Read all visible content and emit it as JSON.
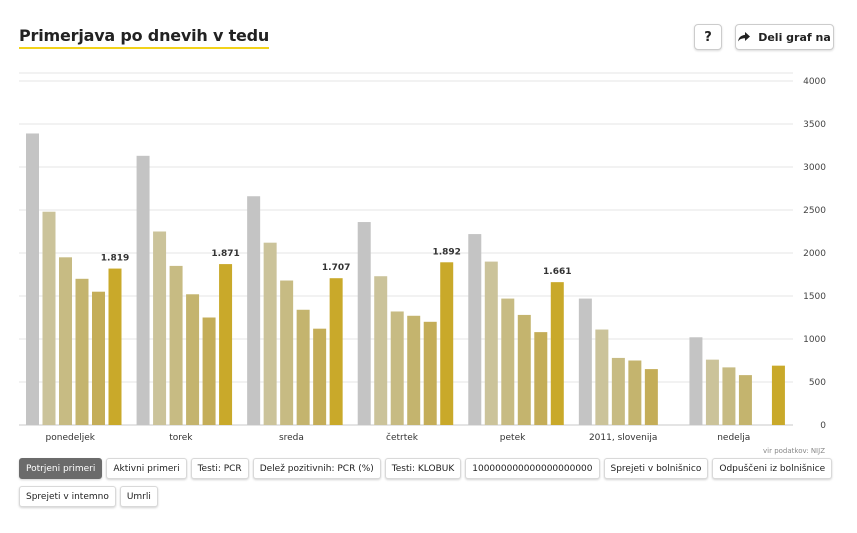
{
  "header": {
    "title": "Primerjava po dnevih v tedu",
    "help_label": "?",
    "share_label": "Deli graf na"
  },
  "source": "vir podatkov: NIJZ",
  "buttons_row1": [
    {
      "label": "Potrjeni primeri",
      "active": true
    },
    {
      "label": "Aktivni primeri",
      "active": false
    },
    {
      "label": "Testi: PCR",
      "active": false
    },
    {
      "label": "Delež pozitivnih: PCR (%)",
      "active": false
    },
    {
      "label": "Testi: KLOBUK",
      "active": false
    },
    {
      "label": "100000000000000000000",
      "active": false
    },
    {
      "label": "Sprejeti v bolnišnico",
      "active": false
    },
    {
      "label": "Odpuščeni iz bolnišnice",
      "active": false
    }
  ],
  "buttons_row2": [
    {
      "label": "Sprejeti v intemno",
      "active": false
    },
    {
      "label": "Umrli",
      "active": false
    }
  ],
  "chart_data": {
    "type": "bar",
    "categories": [
      "ponedeljek",
      "torek",
      "sreda",
      "četrtek",
      "petek",
      "2011, slovenija",
      "nedelja"
    ],
    "series": [
      {
        "color": "#c4c4c4",
        "values": [
          3390,
          3130,
          2660,
          2360,
          2220,
          1470,
          1020
        ]
      },
      {
        "color": "#cbc39a",
        "values": [
          2480,
          2250,
          2120,
          1730,
          1900,
          1110,
          760
        ]
      },
      {
        "color": "#c7bb83",
        "values": [
          1950,
          1850,
          1680,
          1320,
          1470,
          780,
          670
        ]
      },
      {
        "color": "#c4b46e",
        "values": [
          1700,
          1520,
          1340,
          1270,
          1280,
          750,
          580
        ]
      },
      {
        "color": "#c4ad58",
        "values": [
          1550,
          1250,
          1120,
          1200,
          1080,
          650,
          null
        ]
      },
      {
        "color": "#c9a92a",
        "values": [
          1819,
          1871,
          1707,
          1892,
          1661,
          null,
          690
        ]
      }
    ],
    "data_labels": [
      "1.819",
      "1.871",
      "1.707",
      "1.892",
      "1.661",
      "",
      ""
    ],
    "y_ticks": [
      "0",
      "500",
      "1000",
      "1500",
      "2000",
      "2500",
      "3000",
      "3500",
      "4000"
    ],
    "ylim": [
      0,
      4000
    ],
    "grid": true
  }
}
